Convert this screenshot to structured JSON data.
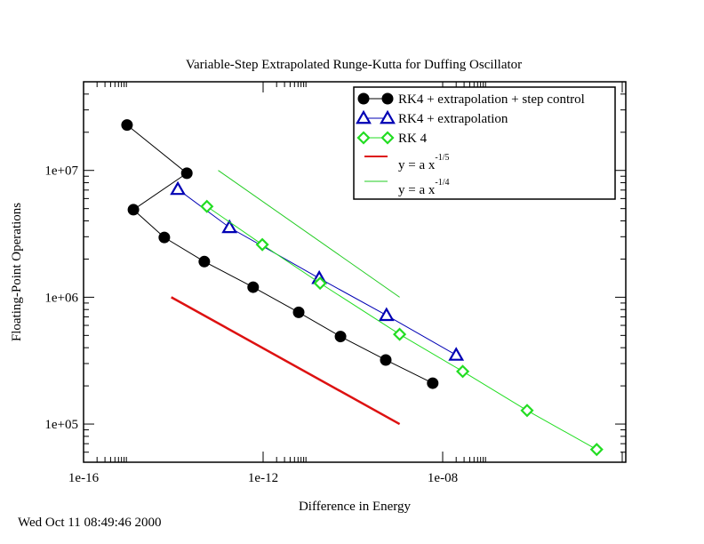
{
  "timestamp": "Wed Oct 11 08:49:46 2000",
  "chart_data": {
    "type": "scatter",
    "title": "Variable-Step Extrapolated Runge-Kutta for Duffing Oscillator",
    "xlabel": "Difference in Energy",
    "ylabel": "Floating-Point Operations",
    "xscale": "log",
    "yscale": "log",
    "xlim": [
      1e-16,
      0.00012
    ],
    "ylim": [
      50000.0,
      50000000.0
    ],
    "x_ticks": [
      {
        "value": 1e-16,
        "label": "1e-16"
      },
      {
        "value": 1e-12,
        "label": "1e-12"
      },
      {
        "value": 1e-08,
        "label": "1e-08"
      }
    ],
    "y_ticks": [
      {
        "value": 100000.0,
        "label": "1e+05"
      },
      {
        "value": 1000000.0,
        "label": "1e+06"
      },
      {
        "value": 10000000.0,
        "label": "1e+07"
      }
    ],
    "grid": false,
    "legend_position": "top-right",
    "series": [
      {
        "name": "RK4 + extrapolation + step control",
        "color": "#000000",
        "marker": "circle",
        "line": true,
        "x": [
          9.3e-16,
          2e-14,
          1.29e-15,
          6.3e-15,
          4.9e-14,
          6e-13,
          6.2e-12,
          5.3e-11,
          5.4e-10,
          6e-09
        ],
        "y": [
          22800000.0,
          9500000.0,
          4900000.0,
          2960000.0,
          1910000.0,
          1200000.0,
          760000.0,
          490000.0,
          320000.0,
          210000.0
        ]
      },
      {
        "name": "RK4 + extrapolation",
        "color": "#0000b4",
        "marker": "triangle",
        "line": true,
        "x": [
          1.26e-14,
          1.78e-13,
          1.78e-11,
          5.6e-10,
          2e-08
        ],
        "y": [
          7100000.0,
          3550000.0,
          1410000.0,
          720000.0,
          350000.0
        ]
      },
      {
        "name": "RK 4",
        "color": "#22dd22",
        "marker": "diamond",
        "line": true,
        "x": [
          5.6e-14,
          9.6e-13,
          1.86e-11,
          1.1e-09,
          2.8e-08,
          7.6e-07,
          2.7e-05
        ],
        "y": [
          5200000.0,
          2600000.0,
          1290000.0,
          510000.0,
          260000.0,
          128000.0,
          63000.0
        ]
      },
      {
        "name": "y = a x",
        "superscript": "-1/5",
        "color": "#dd1111",
        "marker": "none",
        "line": true,
        "linewidth": "thick",
        "x": [
          9e-15,
          1.1e-09
        ],
        "y": [
          1000000.0,
          100000.0
        ]
      },
      {
        "name": "y = a x",
        "superscript": "-1/4",
        "color": "#22cc22",
        "marker": "none",
        "line": true,
        "linewidth": "thin",
        "x": [
          1e-13,
          1.1e-09
        ],
        "y": [
          10000000.0,
          1000000.0
        ]
      }
    ]
  }
}
